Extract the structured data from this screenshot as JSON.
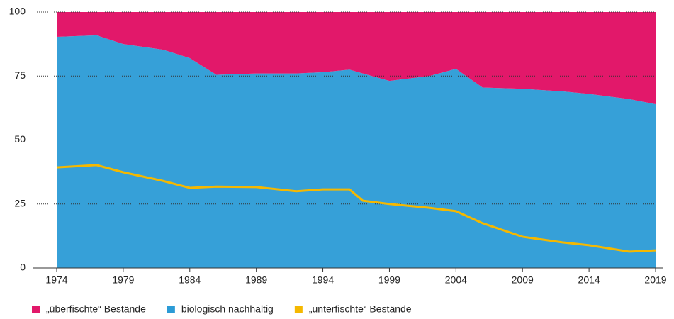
{
  "chart_data": {
    "type": "area",
    "x": [
      1974,
      1977,
      1979,
      1982,
      1984,
      1986,
      1989,
      1992,
      1994,
      1996,
      1997,
      1999,
      2002,
      2004,
      2006,
      2009,
      2012,
      2014,
      2017,
      2019
    ],
    "series": [
      {
        "name": "„überfischte“ Bestände",
        "color": "#e2186a",
        "style": "area",
        "values": [
          9.7,
          9.1,
          12.5,
          14.7,
          18,
          24.5,
          24,
          24,
          23.5,
          22.5,
          24,
          26.9,
          25,
          22.2,
          29.5,
          30,
          31,
          32,
          34,
          36
        ]
      },
      {
        "name": "biologisch nachhaltig",
        "color": "#2b9bd6",
        "style": "area",
        "values": [
          90.3,
          90.9,
          87.5,
          85.3,
          82,
          75.5,
          76,
          76,
          76.5,
          77.5,
          76,
          73.1,
          75,
          77.8,
          70.5,
          70,
          69,
          68,
          66,
          64
        ]
      },
      {
        "name": "„unterfischte“ Bestände",
        "color": "#f5b800",
        "style": "line",
        "values": [
          39.3,
          40.2,
          37.4,
          34,
          31.3,
          31.8,
          31.6,
          30,
          30.7,
          30.7,
          26.3,
          25,
          23.5,
          22.2,
          17.5,
          12.2,
          10,
          8.9,
          6.4,
          6.9
        ]
      }
    ],
    "xlim": [
      1974,
      2019
    ],
    "xticks": [
      1974,
      1979,
      1984,
      1989,
      1994,
      1999,
      2004,
      2009,
      2014,
      2019
    ],
    "ylim": [
      0,
      100
    ],
    "yticks": [
      0,
      25,
      50,
      75,
      100
    ],
    "grid": true,
    "legend": "bottom"
  }
}
